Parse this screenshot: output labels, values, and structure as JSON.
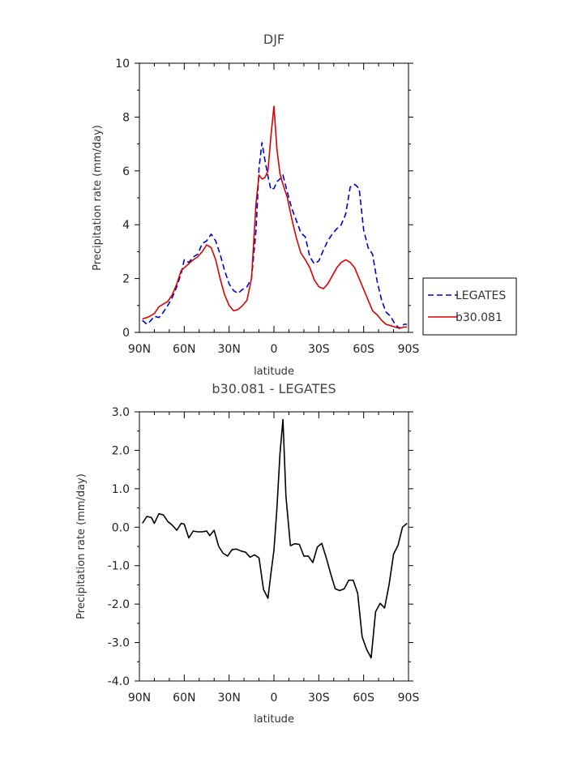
{
  "chart_data": [
    {
      "type": "line",
      "title": "DJF",
      "xlabel": "latitude",
      "ylabel": "Precipitation rate (mm/day)",
      "xlim": [
        90,
        -90
      ],
      "ylim": [
        0,
        10
      ],
      "xticks": [
        90,
        60,
        30,
        0,
        -30,
        -60,
        -90
      ],
      "xticklabels": [
        "90N",
        "60N",
        "30N",
        "0",
        "30S",
        "60S",
        "90S"
      ],
      "yticks": [
        0,
        2,
        4,
        6,
        8,
        10
      ],
      "yticklabels": [
        "0",
        "2",
        "4",
        "6",
        "8",
        "10"
      ],
      "legend_position": "right",
      "series": [
        {
          "name": "LEGATES",
          "color": "#0000cc",
          "dash": "dashed",
          "x": [
            88,
            85,
            83,
            80,
            77,
            74,
            71,
            68,
            65,
            62,
            60,
            57,
            54,
            51,
            48,
            45,
            42,
            39,
            36,
            33,
            30,
            27,
            24,
            21,
            18,
            15,
            12,
            10,
            8,
            6,
            4,
            2,
            0,
            -2,
            -4,
            -6,
            -9,
            -12,
            -15,
            -18,
            -21,
            -24,
            -27,
            -30,
            -33,
            -36,
            -39,
            -42,
            -45,
            -48,
            -51,
            -54,
            -57,
            -60,
            -63,
            -66,
            -69,
            -72,
            -75,
            -78,
            -81,
            -84,
            -87,
            -89
          ],
          "y": [
            0.45,
            0.3,
            0.4,
            0.6,
            0.55,
            0.75,
            1.0,
            1.3,
            1.7,
            2.2,
            2.7,
            2.6,
            2.8,
            2.9,
            3.3,
            3.4,
            3.65,
            3.4,
            2.9,
            2.3,
            1.8,
            1.55,
            1.45,
            1.6,
            1.7,
            2.0,
            3.8,
            6.1,
            7.05,
            6.4,
            5.8,
            5.3,
            5.35,
            5.6,
            5.7,
            5.85,
            5.2,
            4.6,
            4.15,
            3.7,
            3.55,
            2.8,
            2.55,
            2.65,
            3.05,
            3.4,
            3.65,
            3.85,
            4.0,
            4.4,
            5.4,
            5.5,
            5.35,
            3.8,
            3.15,
            2.9,
            1.9,
            1.2,
            0.75,
            0.6,
            0.3,
            0.15,
            0.3,
            0.3
          ]
        },
        {
          "name": "b30.081",
          "color": "#dd0000",
          "dash": "solid",
          "x": [
            88,
            85,
            83,
            80,
            77,
            74,
            71,
            68,
            65,
            62,
            60,
            57,
            54,
            51,
            48,
            45,
            42,
            39,
            36,
            33,
            30,
            27,
            24,
            21,
            18,
            15,
            12,
            10,
            8,
            6,
            4,
            2,
            0,
            -2,
            -4,
            -6,
            -9,
            -12,
            -15,
            -18,
            -21,
            -24,
            -27,
            -30,
            -33,
            -36,
            -39,
            -42,
            -45,
            -48,
            -51,
            -54,
            -57,
            -60,
            -63,
            -66,
            -69,
            -72,
            -75,
            -78,
            -81,
            -84,
            -87,
            -89
          ],
          "y": [
            0.5,
            0.55,
            0.6,
            0.7,
            0.95,
            1.05,
            1.15,
            1.4,
            1.8,
            2.3,
            2.4,
            2.55,
            2.7,
            2.8,
            3.0,
            3.25,
            3.15,
            2.7,
            2.0,
            1.4,
            1.0,
            0.8,
            0.85,
            1.0,
            1.2,
            2.0,
            4.8,
            5.85,
            5.7,
            5.75,
            6.0,
            7.3,
            8.4,
            6.8,
            5.9,
            5.5,
            5.0,
            4.2,
            3.5,
            2.95,
            2.7,
            2.4,
            1.95,
            1.7,
            1.62,
            1.8,
            2.1,
            2.4,
            2.6,
            2.7,
            2.6,
            2.4,
            2.0,
            1.6,
            1.2,
            0.8,
            0.65,
            0.45,
            0.3,
            0.25,
            0.2,
            0.15,
            0.2,
            0.2
          ]
        }
      ]
    },
    {
      "type": "line",
      "title": "b30.081 - LEGATES",
      "xlabel": "latitude",
      "ylabel": "Precipitation rate (mm/day)",
      "xlim": [
        90,
        -90
      ],
      "ylim": [
        -4,
        3
      ],
      "xticks": [
        90,
        60,
        30,
        0,
        -30,
        -60,
        -90
      ],
      "xticklabels": [
        "90N",
        "60N",
        "30N",
        "0",
        "30S",
        "60S",
        "90S"
      ],
      "yticks": [
        -4,
        -3,
        -2,
        -1,
        0,
        1,
        2,
        3
      ],
      "yticklabels": [
        "-4.0",
        "-3.0",
        "-2.0",
        "-1.0",
        "0.0",
        "1.0",
        "2.0",
        "3.0"
      ],
      "series": [
        {
          "color": "#000000",
          "x": [
            88,
            85,
            82,
            80,
            77,
            74,
            71,
            68,
            65,
            62,
            60,
            57,
            54,
            51,
            48,
            45,
            43,
            40,
            37,
            34,
            31,
            28,
            25,
            22,
            19,
            16,
            13,
            10,
            7,
            4,
            2,
            0,
            -2,
            -4,
            -6,
            -8,
            -11,
            -14,
            -17,
            -20,
            -23,
            -26,
            -29,
            -32,
            -35,
            -38,
            -41,
            -44,
            -47,
            -50,
            -53,
            -56,
            -59,
            -62,
            -65,
            -68,
            -71,
            -74,
            -77,
            -80,
            -83,
            -86,
            -89
          ],
          "y": [
            0.1,
            0.28,
            0.25,
            0.1,
            0.35,
            0.32,
            0.15,
            0.05,
            -0.08,
            0.1,
            0.08,
            -0.28,
            -0.1,
            -0.12,
            -0.12,
            -0.1,
            -0.22,
            -0.08,
            -0.5,
            -0.68,
            -0.75,
            -0.58,
            -0.57,
            -0.62,
            -0.65,
            -0.78,
            -0.72,
            -0.8,
            -1.62,
            -1.85,
            -1.2,
            -0.6,
            0.5,
            1.9,
            2.8,
            0.8,
            -0.48,
            -0.43,
            -0.45,
            -0.75,
            -0.75,
            -0.92,
            -0.52,
            -0.42,
            -0.8,
            -1.22,
            -1.6,
            -1.65,
            -1.6,
            -1.38,
            -1.38,
            -1.72,
            -2.85,
            -3.18,
            -3.4,
            -2.2,
            -1.98,
            -2.1,
            -1.5,
            -0.7,
            -0.47,
            0.0,
            0.1
          ]
        }
      ]
    }
  ]
}
